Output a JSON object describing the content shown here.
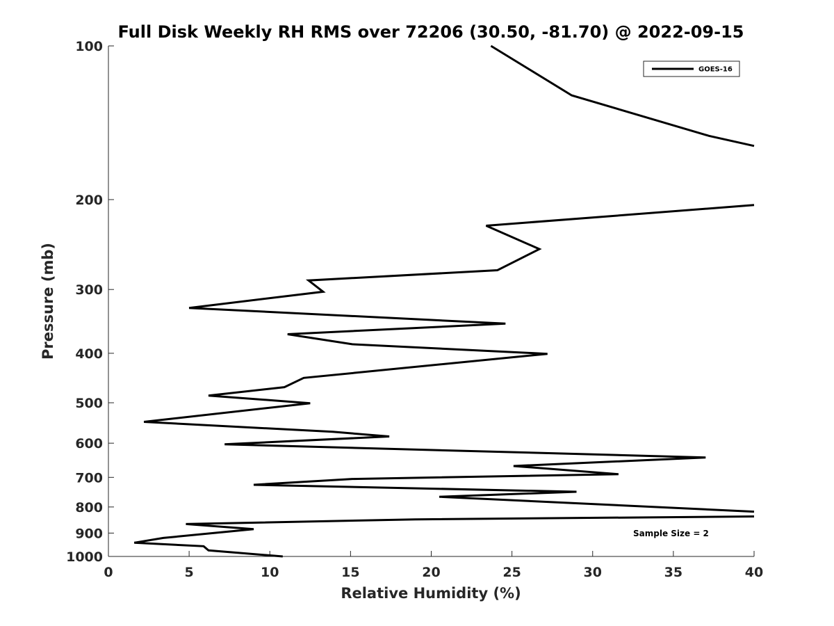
{
  "chart_data": {
    "type": "line",
    "title": "Full Disk Weekly RH RMS over 72206 (30.50, -81.70) @ 2022-09-15",
    "xlabel": "Relative Humidity (%)",
    "ylabel": "Pressure (mb)",
    "xlim": [
      0,
      40
    ],
    "ylim": [
      100,
      1000
    ],
    "y_scale": "log",
    "y_reversed": true,
    "x_ticks": [
      "0",
      "5",
      "10",
      "15",
      "20",
      "25",
      "30",
      "35",
      "40"
    ],
    "y_ticks": [
      "100",
      "200",
      "300",
      "400",
      "500",
      "600",
      "700",
      "800",
      "900",
      "1000"
    ],
    "grid": false,
    "legend_position": "top-right",
    "annotation": "Sample Size = 2",
    "series": [
      {
        "name": "GOES-16",
        "color": "#000000",
        "points": [
          [
            23.7,
            100
          ],
          [
            28.7,
            125
          ],
          [
            37.2,
            150
          ],
          [
            40.0,
            157
          ],
          [
            null,
            null
          ],
          [
            40.0,
            205
          ],
          [
            23.4,
            225
          ],
          [
            26.7,
            250
          ],
          [
            24.1,
            275
          ],
          [
            12.4,
            288
          ],
          [
            13.3,
            303
          ],
          [
            5.0,
            326
          ],
          [
            24.6,
            350
          ],
          [
            11.1,
            367
          ],
          [
            15.1,
            384
          ],
          [
            27.2,
            401
          ],
          [
            12.1,
            447
          ],
          [
            10.9,
            466
          ],
          [
            6.2,
            484
          ],
          [
            12.5,
            501
          ],
          [
            2.2,
            545
          ],
          [
            13.9,
            570
          ],
          [
            17.4,
            582
          ],
          [
            7.2,
            603
          ],
          [
            37.0,
            640
          ],
          [
            25.1,
            665
          ],
          [
            31.6,
            690
          ],
          [
            15.1,
            705
          ],
          [
            9.0,
            724
          ],
          [
            29.0,
            747
          ],
          [
            20.5,
            764
          ],
          [
            40.0,
            817
          ],
          [
            null,
            null
          ],
          [
            40.0,
            835
          ],
          [
            19.0,
            846
          ],
          [
            4.8,
            864
          ],
          [
            9.0,
            884
          ],
          [
            3.4,
            920
          ],
          [
            1.6,
            940
          ],
          [
            5.9,
            955
          ],
          [
            6.2,
            973
          ],
          [
            10.8,
            1000
          ]
        ]
      }
    ]
  }
}
